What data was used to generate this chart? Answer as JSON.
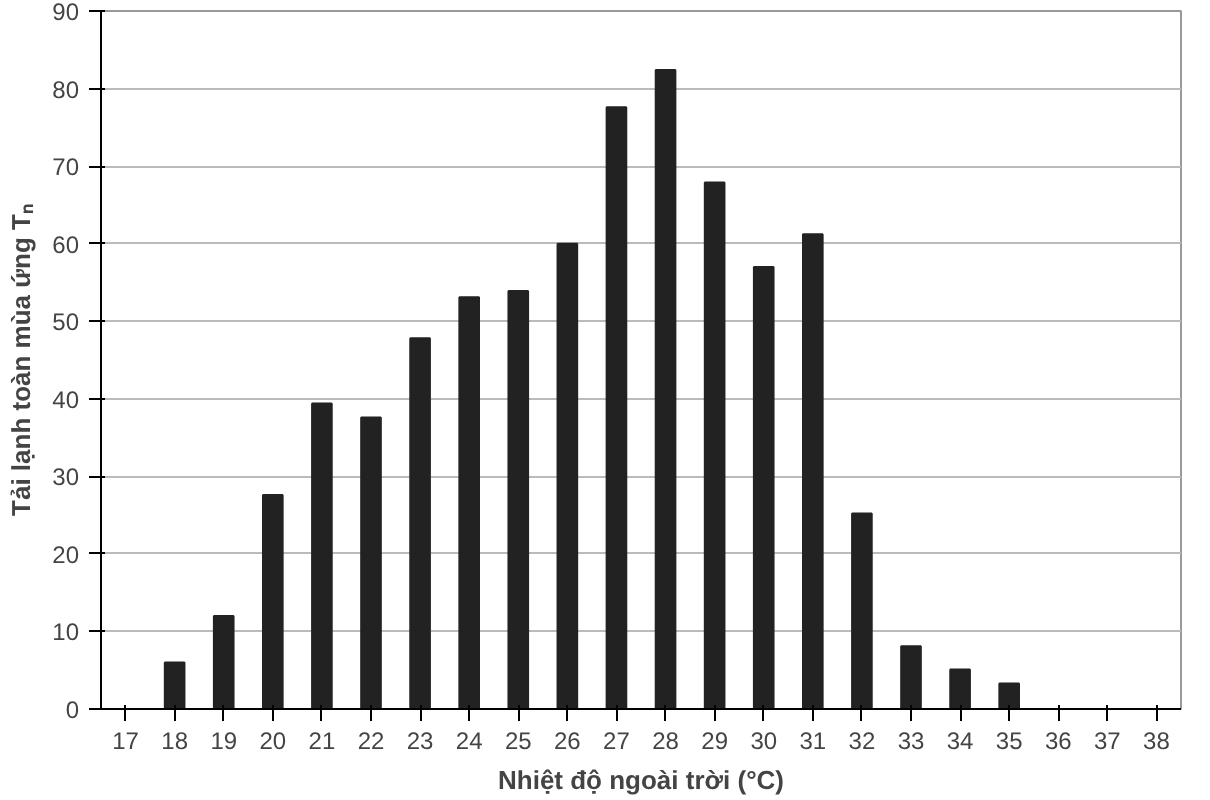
{
  "chart_data": {
    "type": "bar",
    "xlabel": "Nhiệt độ ngoài trời (°C)",
    "ylabel": "Tải lạnh toàn mùa ứng Tₙ",
    "categories": [
      "17",
      "18",
      "19",
      "20",
      "21",
      "22",
      "23",
      "24",
      "25",
      "26",
      "27",
      "28",
      "29",
      "30",
      "31",
      "32",
      "33",
      "34",
      "35",
      "36",
      "37",
      "38"
    ],
    "values": [
      null,
      6,
      12,
      27.6,
      39.4,
      37.6,
      47.8,
      53.1,
      53.9,
      60,
      77.6,
      82.4,
      67.9,
      57,
      61.2,
      25.2,
      8.1,
      5.1,
      3.3,
      null,
      null,
      null
    ],
    "color": "#222222",
    "ylim": [
      0,
      90
    ],
    "yticks": [
      0,
      10,
      20,
      30,
      40,
      50,
      60,
      70,
      80,
      90
    ],
    "grid": "y"
  }
}
